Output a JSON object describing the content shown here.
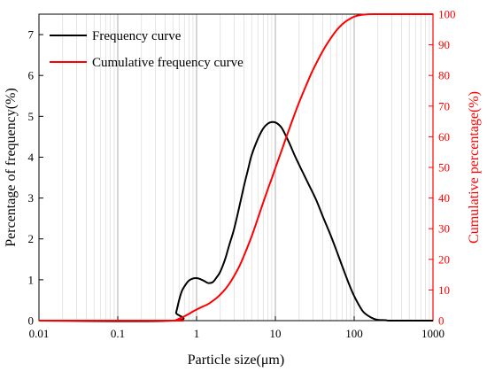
{
  "chart_data": {
    "type": "line",
    "x_scale": "log",
    "xlabel": "Particle size(μm)",
    "ylabel_left": "Percentage of frequency(%)",
    "ylabel_right": "Cumulative percentage(%)",
    "xlim": [
      0.01,
      1000
    ],
    "ylim_left": [
      0,
      7.5
    ],
    "ylim_right": [
      0,
      100
    ],
    "grid": "vertical log minor",
    "legend_position": "top-left",
    "x_ticks": [
      "0.01",
      "0.1",
      "1",
      "10",
      "100",
      "1000"
    ],
    "y_ticks_left": [
      "0",
      "1",
      "2",
      "3",
      "4",
      "5",
      "6",
      "7"
    ],
    "y_ticks_right": [
      "0",
      "10",
      "20",
      "30",
      "40",
      "50",
      "60",
      "70",
      "80",
      "90",
      "100"
    ],
    "series": [
      {
        "name": "Frequency curve",
        "axis": "left",
        "color": "#000000",
        "x": [
          0.01,
          0.5,
          0.55,
          0.6,
          0.65,
          0.72,
          0.8,
          0.9,
          1.0,
          1.1,
          1.25,
          1.4,
          1.6,
          1.8,
          2.0,
          2.3,
          2.6,
          3.0,
          3.5,
          4.0,
          4.5,
          5.0,
          6.0,
          7.0,
          8.0,
          9.0,
          10,
          11,
          12,
          13,
          15,
          18,
          22,
          27,
          33,
          40,
          50,
          60,
          70,
          80,
          90,
          100,
          115,
          130,
          150,
          175,
          200,
          250,
          300,
          1000
        ],
        "values": [
          0,
          0,
          0.2,
          0.5,
          0.72,
          0.87,
          0.98,
          1.03,
          1.04,
          1.02,
          0.97,
          0.92,
          0.94,
          1.06,
          1.2,
          1.5,
          1.85,
          2.25,
          2.8,
          3.3,
          3.7,
          4.05,
          4.45,
          4.7,
          4.82,
          4.86,
          4.85,
          4.8,
          4.72,
          4.6,
          4.35,
          4.0,
          3.65,
          3.3,
          2.95,
          2.55,
          2.1,
          1.7,
          1.35,
          1.05,
          0.8,
          0.6,
          0.38,
          0.22,
          0.12,
          0.05,
          0.02,
          0.01,
          0.0,
          0.0
        ]
      },
      {
        "name": "Cumulative frequency curve",
        "axis": "right",
        "color": "#ff0000",
        "x": [
          0.01,
          0.5,
          0.55,
          0.6,
          0.7,
          0.8,
          0.9,
          1.0,
          1.2,
          1.4,
          1.6,
          1.8,
          2.0,
          2.3,
          2.6,
          3.0,
          3.5,
          4.0,
          5.0,
          6.0,
          7.0,
          8.0,
          9.0,
          10,
          12,
          14,
          17,
          20,
          25,
          30,
          40,
          50,
          60,
          70,
          80,
          90,
          100,
          120,
          150,
          180,
          200,
          300,
          1000
        ],
        "values": [
          0,
          0,
          0.2,
          0.6,
          1.4,
          2.2,
          3.0,
          3.6,
          4.6,
          5.4,
          6.4,
          7.4,
          8.5,
          10.2,
          12.0,
          14.6,
          17.8,
          21.2,
          27.5,
          33.4,
          38.5,
          42.8,
          46.4,
          49.8,
          55.5,
          60.4,
          66.4,
          71.2,
          77.2,
          81.8,
          88.0,
          92.0,
          94.8,
          96.6,
          97.8,
          98.6,
          99.2,
          99.7,
          99.95,
          100,
          100,
          100,
          100
        ]
      }
    ]
  }
}
